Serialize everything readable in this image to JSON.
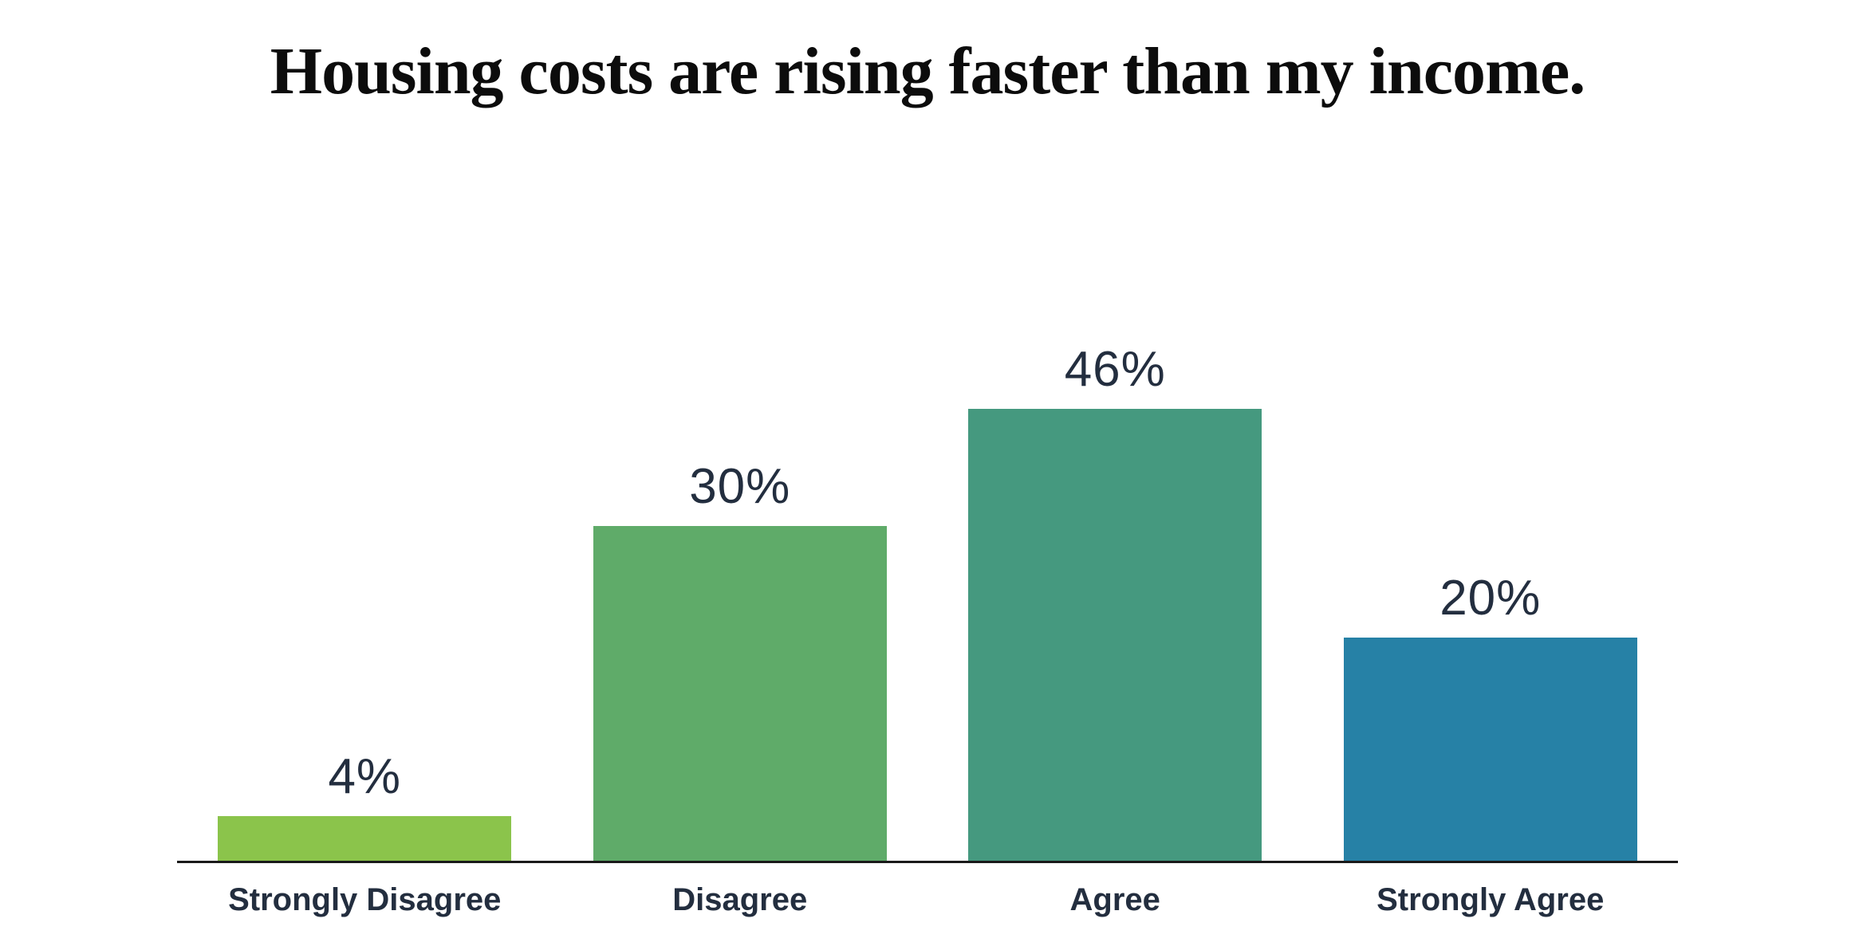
{
  "page": {
    "background": "#ffffff"
  },
  "chart_data": {
    "type": "bar",
    "title": "Housing costs are rising faster than my income.",
    "categories": [
      "Strongly Disagree",
      "Disagree",
      "Agree",
      "Strongly Agree"
    ],
    "values": [
      4,
      30,
      46,
      20
    ],
    "value_labels": [
      "4%",
      "30%",
      "46%",
      "20%"
    ],
    "unit": "percent",
    "series_colors": [
      "#8bc44b",
      "#5fab69",
      "#45997f",
      "#2681a6"
    ],
    "title_color": "#0c0c0c",
    "text_color": "#232e3f",
    "axis_color": "#1a1a1a",
    "ylim": [
      0,
      46
    ],
    "grid": false,
    "legend": "none",
    "value_label_position": "above-bars",
    "baseline_axis": "x-axis-only"
  }
}
